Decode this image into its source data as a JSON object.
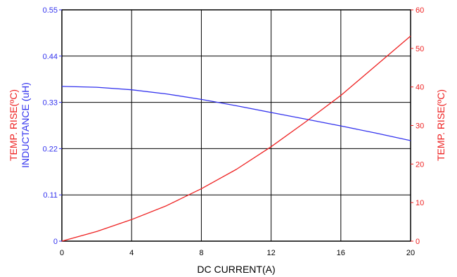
{
  "chart_data": {
    "type": "line",
    "xlabel": "DC CURRENT(A)",
    "ylabel_left_primary": "INDUCTANCE (uH)",
    "ylabel_left_secondary": "TEMP. RISE(ºC)",
    "ylabel_right": "TEMP. RISE(ºC)",
    "xlim": [
      0,
      20
    ],
    "xticks": [
      0,
      4,
      8,
      12,
      16,
      20
    ],
    "ylim_left": [
      0,
      0.55
    ],
    "yticks_left": [
      "0",
      "0.11",
      "0.22",
      "0.33",
      "0.44",
      "0.55"
    ],
    "ylim_right": [
      0,
      60
    ],
    "yticks_right": [
      "0",
      "10",
      "20",
      "30",
      "40",
      "50",
      "60"
    ],
    "grid": true,
    "series": [
      {
        "axis": "left",
        "color": "#3333ee",
        "x": [
          0,
          2,
          4,
          6,
          8,
          10,
          12,
          14,
          16,
          18,
          20
        ],
        "y": [
          0.368,
          0.366,
          0.36,
          0.35,
          0.337,
          0.322,
          0.306,
          0.29,
          0.274,
          0.257,
          0.239
        ]
      },
      {
        "axis": "right",
        "color": "#ee2222",
        "x": [
          0,
          2,
          4,
          6,
          8,
          10,
          12,
          14,
          16,
          18,
          20
        ],
        "y": [
          0,
          2.5,
          5.6,
          9.2,
          13.6,
          18.6,
          24.5,
          31.0,
          37.8,
          45.5,
          53.2
        ]
      }
    ]
  },
  "colors": {
    "left_axis": "#3333ee",
    "right_axis": "#ee2222",
    "grid": "#000000"
  }
}
